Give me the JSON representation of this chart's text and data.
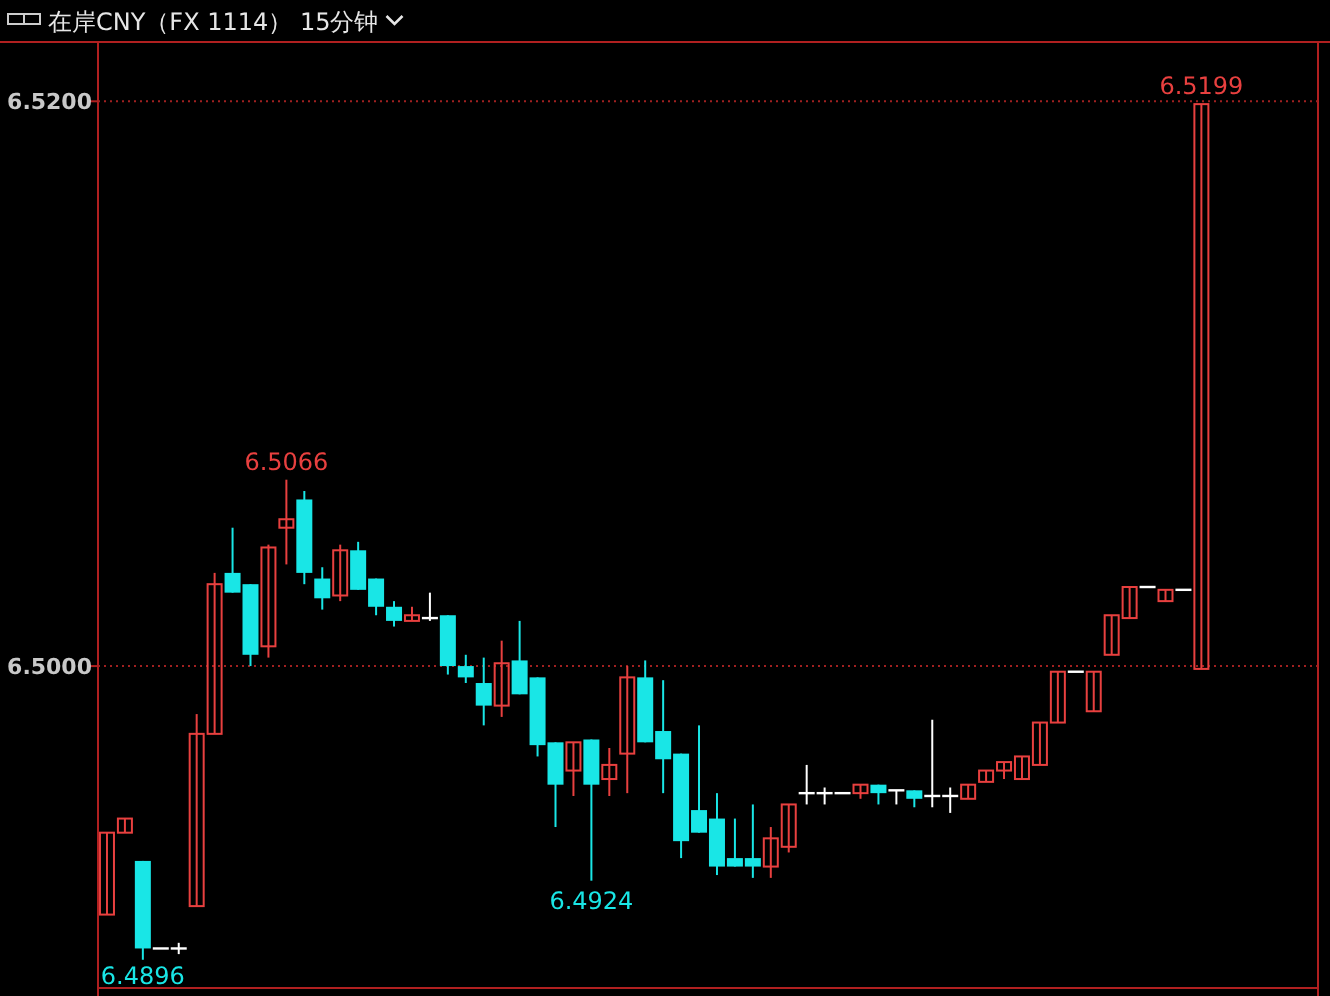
{
  "chart_data": {
    "type": "candlestick",
    "title": "在岸CNY（FX 1114） 15分钟",
    "categories": [
      null,
      null,
      null,
      null,
      null,
      null,
      null,
      null,
      null,
      null,
      null,
      null,
      null,
      null,
      null,
      null,
      null,
      null,
      null,
      null,
      null,
      null,
      null,
      null,
      null,
      null,
      null,
      null,
      null,
      null,
      null,
      null,
      null,
      null,
      null,
      null,
      null,
      null,
      null,
      null,
      null,
      null,
      null,
      null,
      null,
      null,
      null,
      null,
      null,
      null,
      null,
      null,
      null,
      null,
      null,
      null,
      null,
      null,
      null,
      null,
      null,
      null,
      null,
      null,
      null,
      null,
      null,
      null
    ],
    "ohlc": [
      [
        6.4912,
        6.4941,
        6.4912,
        6.4941
      ],
      [
        6.4941,
        6.4946,
        6.4941,
        6.4946
      ],
      [
        6.4931,
        6.4931,
        6.4896,
        6.49
      ],
      [
        6.49,
        6.49,
        6.49,
        6.49
      ],
      [
        6.49,
        6.4902,
        6.4898,
        6.49
      ],
      [
        6.4915,
        6.4983,
        6.4915,
        6.4976
      ],
      [
        6.4976,
        6.5033,
        6.4976,
        6.5029
      ],
      [
        6.5033,
        6.5049,
        6.5026,
        6.5026
      ],
      [
        6.5029,
        6.5029,
        6.5,
        6.5004
      ],
      [
        6.5007,
        6.5043,
        6.5003,
        6.5042
      ],
      [
        6.5049,
        6.5066,
        6.5036,
        6.5052
      ],
      [
        6.5059,
        6.5062,
        6.5029,
        6.5033
      ],
      [
        6.5031,
        6.5035,
        6.502,
        6.5024
      ],
      [
        6.5025,
        6.5043,
        6.5023,
        6.5041
      ],
      [
        6.5041,
        6.5044,
        6.5027,
        6.5027
      ],
      [
        6.5031,
        6.5031,
        6.5018,
        6.5021
      ],
      [
        6.5021,
        6.5023,
        6.5014,
        6.5016
      ],
      [
        6.5016,
        6.5021,
        6.5016,
        6.5018
      ],
      [
        6.5017,
        6.5026,
        6.5016,
        6.5017
      ],
      [
        6.5018,
        6.5018,
        6.4997,
        6.5
      ],
      [
        6.5,
        6.5004,
        6.4994,
        6.4996
      ],
      [
        6.4994,
        6.5003,
        6.4979,
        6.4986
      ],
      [
        6.4986,
        6.5009,
        6.4982,
        6.5001
      ],
      [
        6.5002,
        6.5016,
        6.499,
        6.499
      ],
      [
        6.4996,
        6.4996,
        6.4968,
        6.4972
      ],
      [
        6.4973,
        6.4973,
        6.4943,
        6.4958
      ],
      [
        6.4963,
        6.4973,
        6.4954,
        6.4973
      ],
      [
        6.4974,
        6.4974,
        6.4924,
        6.4958
      ],
      [
        6.496,
        6.4971,
        6.4954,
        6.4965
      ],
      [
        6.4969,
        6.5,
        6.4955,
        6.4996
      ],
      [
        6.4996,
        6.5002,
        6.4973,
        6.4973
      ],
      [
        6.4977,
        6.4995,
        6.4955,
        6.4967
      ],
      [
        6.4969,
        6.4969,
        6.4932,
        6.4938
      ],
      [
        6.4949,
        6.4979,
        6.4941,
        6.4941
      ],
      [
        6.4946,
        6.4955,
        6.4926,
        6.4929
      ],
      [
        6.4932,
        6.4946,
        6.4929,
        6.4929
      ],
      [
        6.4932,
        6.4951,
        6.4925,
        6.4929
      ],
      [
        6.4929,
        6.4943,
        6.4925,
        6.4939
      ],
      [
        6.4936,
        6.4951,
        6.4934,
        6.4951
      ],
      [
        6.4955,
        6.4965,
        6.4951,
        6.4955
      ],
      [
        6.4955,
        6.4957,
        6.4951,
        6.4955
      ],
      [
        6.4955,
        6.4955,
        6.4955,
        6.4955
      ],
      [
        6.4955,
        6.4958,
        6.4953,
        6.4958
      ],
      [
        6.4958,
        6.4958,
        6.4951,
        6.4955
      ],
      [
        6.4956,
        6.4956,
        6.4951,
        6.4956
      ],
      [
        6.4956,
        6.4956,
        6.495,
        6.4953
      ],
      [
        6.4954,
        6.4981,
        6.495,
        6.4954
      ],
      [
        6.4954,
        6.4957,
        6.4948,
        6.4954
      ],
      [
        6.4953,
        6.4958,
        6.4953,
        6.4958
      ],
      [
        6.4959,
        6.4963,
        6.4959,
        6.4963
      ],
      [
        6.4963,
        6.4966,
        6.496,
        6.4966
      ],
      [
        6.496,
        6.4968,
        6.496,
        6.4968
      ],
      [
        6.4965,
        6.498,
        6.4965,
        6.498
      ],
      [
        6.498,
        6.4998,
        6.498,
        6.4998
      ],
      [
        6.4998,
        6.4998,
        6.4998,
        6.4998
      ],
      [
        6.4984,
        6.4998,
        6.4984,
        6.4998
      ],
      [
        6.5004,
        6.5018,
        6.5004,
        6.5018
      ],
      [
        6.5017,
        6.5028,
        6.5017,
        6.5028
      ],
      [
        6.5028,
        6.5028,
        6.5028,
        6.5028
      ],
      [
        6.5023,
        6.5027,
        6.5023,
        6.5027
      ],
      [
        6.5027,
        6.5027,
        6.5027,
        6.5027
      ],
      [
        6.4999,
        6.5199,
        6.4999,
        6.5199
      ],
      null,
      null,
      null,
      null,
      null,
      null
    ],
    "colors": [
      "#e8403f",
      "#e8403f",
      "#19e6e6",
      "#ffffff",
      "#ffffff",
      "#e8403f",
      "#e8403f",
      "#19e6e6",
      "#19e6e6",
      "#e8403f",
      "#e8403f",
      "#19e6e6",
      "#19e6e6",
      "#e8403f",
      "#19e6e6",
      "#19e6e6",
      "#19e6e6",
      "#e8403f",
      "#ffffff",
      "#19e6e6",
      "#19e6e6",
      "#19e6e6",
      "#e8403f",
      "#19e6e6",
      "#19e6e6",
      "#19e6e6",
      "#e8403f",
      "#19e6e6",
      "#e8403f",
      "#e8403f",
      "#19e6e6",
      "#19e6e6",
      "#19e6e6",
      "#19e6e6",
      "#19e6e6",
      "#19e6e6",
      "#19e6e6",
      "#e8403f",
      "#e8403f",
      "#ffffff",
      "#ffffff",
      "#ffffff",
      "#e8403f",
      "#19e6e6",
      "#ffffff",
      "#19e6e6",
      "#ffffff",
      "#ffffff",
      "#e8403f",
      "#e8403f",
      "#e8403f",
      "#e8403f",
      "#e8403f",
      "#e8403f",
      "#ffffff",
      "#e8403f",
      "#e8403f",
      "#e8403f",
      "#ffffff",
      "#e8403f",
      "#ffffff",
      "#e8403f",
      null,
      null,
      null,
      null,
      null,
      null
    ],
    "ylim": [
      6.4886,
      6.5221
    ],
    "yticks": [
      {
        "value": 6.52,
        "label": "6.5200"
      },
      {
        "value": 6.5,
        "label": "6.5000"
      }
    ],
    "grid": "y",
    "annotations": [
      "6.5066",
      "6.4924",
      "6.5199",
      "6.4896"
    ]
  }
}
